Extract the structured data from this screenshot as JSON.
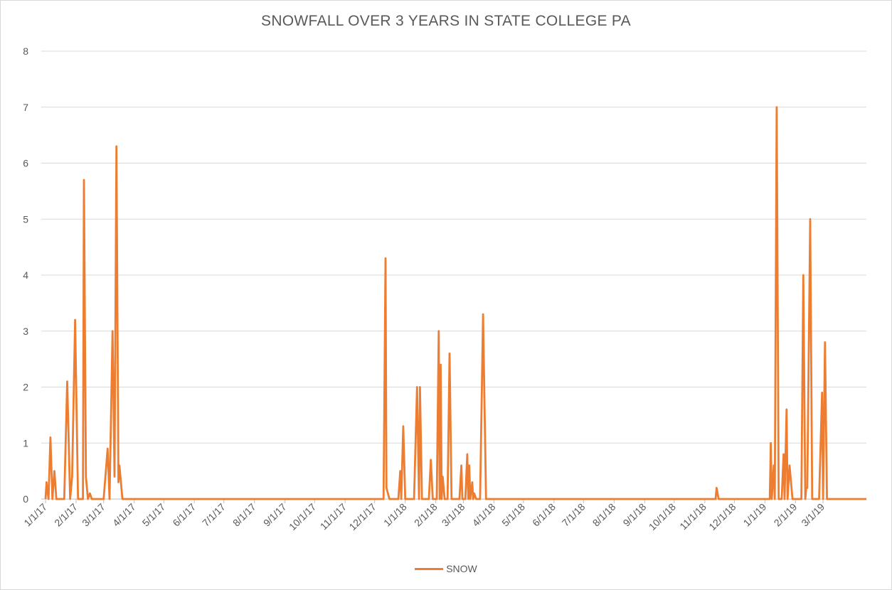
{
  "chart_data": {
    "type": "line",
    "title": "SNOWFALL OVER 3 YEARS IN STATE COLLEGE PA",
    "xlabel": "",
    "ylabel": "",
    "ylim": [
      0,
      8
    ],
    "yticks": [
      "0",
      "1",
      "2",
      "3",
      "4",
      "5",
      "6",
      "7",
      "8"
    ],
    "xlim": [
      "1/1/17",
      "4/1/19"
    ],
    "xticks": [
      "1/1/17",
      "2/1/17",
      "3/1/17",
      "4/1/17",
      "5/1/17",
      "6/1/17",
      "7/1/17",
      "8/1/17",
      "9/1/17",
      "10/1/17",
      "11/1/17",
      "12/1/17",
      "1/1/18",
      "2/1/18",
      "3/1/18",
      "4/1/18",
      "5/1/18",
      "6/1/18",
      "7/1/18",
      "8/1/18",
      "9/1/18",
      "10/1/18",
      "11/1/18",
      "12/1/18",
      "1/1/19",
      "2/1/19",
      "3/1/19"
    ],
    "grid": true,
    "legend_position": "bottom",
    "series": [
      {
        "name": "SNOW",
        "color": "#ED7D31",
        "points": [
          [
            "1/1/17",
            0
          ],
          [
            "1/2/17",
            0.3
          ],
          [
            "1/4/17",
            0
          ],
          [
            "1/6/17",
            1.1
          ],
          [
            "1/8/17",
            0
          ],
          [
            "1/10/17",
            0.5
          ],
          [
            "1/12/17",
            0
          ],
          [
            "1/20/17",
            0
          ],
          [
            "1/23/17",
            2.1
          ],
          [
            "1/26/17",
            0
          ],
          [
            "1/28/17",
            0.4
          ],
          [
            "1/31/17",
            3.2
          ],
          [
            "2/3/17",
            0
          ],
          [
            "2/8/17",
            0
          ],
          [
            "2/9/17",
            5.7
          ],
          [
            "2/11/17",
            0.4
          ],
          [
            "2/13/17",
            0
          ],
          [
            "2/15/17",
            0.1
          ],
          [
            "2/17/17",
            0
          ],
          [
            "3/1/17",
            0
          ],
          [
            "3/5/17",
            0.9
          ],
          [
            "3/7/17",
            0
          ],
          [
            "3/10/17",
            3.0
          ],
          [
            "3/12/17",
            0.4
          ],
          [
            "3/14/17",
            6.3
          ],
          [
            "3/16/17",
            0.3
          ],
          [
            "3/17/17",
            0.6
          ],
          [
            "3/20/17",
            0
          ],
          [
            "12/10/17",
            0
          ],
          [
            "12/12/17",
            4.3
          ],
          [
            "12/13/17",
            0.2
          ],
          [
            "12/16/17",
            0
          ],
          [
            "12/25/17",
            0
          ],
          [
            "12/27/17",
            0.5
          ],
          [
            "12/28/17",
            0
          ],
          [
            "12/30/17",
            1.3
          ],
          [
            "1/1/18",
            0
          ],
          [
            "1/10/18",
            0
          ],
          [
            "1/13/18",
            2.0
          ],
          [
            "1/15/18",
            0
          ],
          [
            "1/16/18",
            2.0
          ],
          [
            "1/18/18",
            0
          ],
          [
            "1/25/18",
            0
          ],
          [
            "1/27/18",
            0.7
          ],
          [
            "1/29/18",
            0
          ],
          [
            "2/2/18",
            0
          ],
          [
            "2/4/18",
            3.0
          ],
          [
            "2/5/18",
            0
          ],
          [
            "2/6/18",
            2.4
          ],
          [
            "2/7/18",
            0
          ],
          [
            "2/8/18",
            0.4
          ],
          [
            "2/10/18",
            0
          ],
          [
            "2/13/18",
            0
          ],
          [
            "2/15/18",
            2.6
          ],
          [
            "2/17/18",
            0
          ],
          [
            "2/25/18",
            0
          ],
          [
            "2/27/18",
            0.6
          ],
          [
            "2/28/18",
            0
          ],
          [
            "3/3/18",
            0
          ],
          [
            "3/5/18",
            0.8
          ],
          [
            "3/6/18",
            0
          ],
          [
            "3/7/18",
            0.6
          ],
          [
            "3/8/18",
            0
          ],
          [
            "3/10/18",
            0.3
          ],
          [
            "3/11/18",
            0
          ],
          [
            "3/12/18",
            0.1
          ],
          [
            "3/14/18",
            0
          ],
          [
            "3/18/18",
            0
          ],
          [
            "3/21/18",
            3.3
          ],
          [
            "3/24/18",
            0
          ],
          [
            "11/12/18",
            0
          ],
          [
            "11/13/18",
            0.2
          ],
          [
            "11/15/18",
            0
          ],
          [
            "1/1/19",
            0
          ],
          [
            "1/6/19",
            0
          ],
          [
            "1/7/19",
            1.0
          ],
          [
            "1/8/19",
            0
          ],
          [
            "1/10/19",
            0.6
          ],
          [
            "1/11/19",
            0
          ],
          [
            "1/13/19",
            7.0
          ],
          [
            "1/15/19",
            0
          ],
          [
            "1/18/19",
            0
          ],
          [
            "1/20/19",
            0.8
          ],
          [
            "1/21/19",
            0
          ],
          [
            "1/23/19",
            1.6
          ],
          [
            "1/24/19",
            0
          ],
          [
            "1/26/19",
            0.6
          ],
          [
            "1/29/19",
            0
          ],
          [
            "2/7/19",
            0
          ],
          [
            "2/9/19",
            4.0
          ],
          [
            "2/11/19",
            0
          ],
          [
            "2/12/19",
            0.2
          ],
          [
            "2/13/19",
            0.2
          ],
          [
            "2/16/19",
            5.0
          ],
          [
            "2/18/19",
            0
          ],
          [
            "2/25/19",
            0
          ],
          [
            "2/28/19",
            1.9
          ],
          [
            "3/1/19",
            0
          ],
          [
            "3/3/19",
            2.8
          ],
          [
            "3/5/19",
            0
          ],
          [
            "4/1/19",
            0
          ]
        ]
      }
    ]
  }
}
